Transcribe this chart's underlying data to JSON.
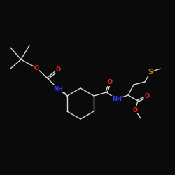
{
  "background": "#0a0a0a",
  "bond_color": "#d8d8d8",
  "atom_colors": {
    "O": "#ff2020",
    "N": "#3838ff",
    "S": "#b8900a",
    "C": "#d8d8d8"
  },
  "font_size_atom": 6.0,
  "fig_size": [
    2.5,
    2.5
  ],
  "dpi": 100
}
